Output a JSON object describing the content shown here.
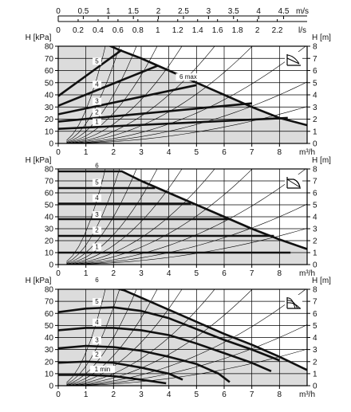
{
  "chart_data": [
    {
      "type": "line",
      "name": "proportional",
      "ylabel_left": "H [kPa]",
      "ylabel_right": "H [m]",
      "xlabel": "m³/h",
      "xlim": [
        0,
        9
      ],
      "ylim": [
        0,
        80
      ],
      "yticks": [
        0,
        10,
        20,
        30,
        40,
        50,
        60,
        70,
        80
      ],
      "yticks_m": [
        0,
        1,
        2,
        3,
        4,
        5,
        6,
        7,
        8
      ],
      "xticks": [
        0,
        1,
        2,
        3,
        4,
        5,
        6,
        7,
        8
      ],
      "top_axis_ms": {
        "unit": "m/s",
        "ticks": [
          "0",
          "0.5",
          "1",
          "1.5",
          "2",
          "2.5",
          "3",
          "3.5",
          "4",
          "4.5"
        ],
        "values": [
          0,
          0.5,
          1,
          1.5,
          2,
          2.5,
          3,
          3.5,
          4,
          4.5
        ]
      },
      "top_axis_ls": {
        "unit": "l/s",
        "ticks": [
          "0",
          "0.2",
          "0.4",
          "0.6",
          "0.8",
          "1",
          "1.2",
          "1.4",
          "1.6",
          "1.8",
          "2",
          "2.2"
        ],
        "values": [
          0,
          0.2,
          0.4,
          0.6,
          0.8,
          1,
          1.2,
          1.4,
          1.6,
          1.8,
          2,
          2.2
        ]
      },
      "mode_icon": "proportional-pressure-icon",
      "series": [
        {
          "name": "6 max",
          "points": [
            [
              0,
              81
            ],
            [
              0.8,
              82
            ],
            [
              1.3,
              83
            ],
            [
              1.7,
              82
            ],
            [
              2.2,
              77
            ],
            [
              3,
              70
            ],
            [
              4,
              60
            ],
            [
              5,
              50
            ],
            [
              6,
              40
            ],
            [
              7,
              30
            ],
            [
              8,
              21
            ],
            [
              9,
              15
            ]
          ]
        },
        {
          "name": "5",
          "points": [
            [
              0,
              39
            ],
            [
              2.3,
              77
            ]
          ]
        },
        {
          "name": "4",
          "points": [
            [
              0,
              31
            ],
            [
              3.6,
              64
            ]
          ]
        },
        {
          "name": "3",
          "points": [
            [
              0,
              24
            ],
            [
              5,
              48
            ]
          ]
        },
        {
          "name": "2",
          "points": [
            [
              0,
              18
            ],
            [
              7,
              33
            ]
          ]
        },
        {
          "name": "1",
          "points": [
            [
              0,
              12
            ],
            [
              8.3,
              21
            ]
          ]
        }
      ],
      "curve_labels": [
        {
          "text": "6 max",
          "x": 4.7,
          "y": 53
        },
        {
          "text": "5",
          "x": 1.4,
          "y": 66
        },
        {
          "text": "4",
          "x": 1.4,
          "y": 47
        },
        {
          "text": "3",
          "x": 1.4,
          "y": 33
        },
        {
          "text": "2",
          "x": 1.4,
          "y": 24
        },
        {
          "text": "1",
          "x": 1.4,
          "y": 16
        }
      ]
    },
    {
      "type": "line",
      "name": "constant",
      "ylabel_left": "H [kPa]",
      "ylabel_right": "H [m]",
      "xlabel": "m³/h",
      "xlim": [
        0,
        9
      ],
      "ylim": [
        0,
        80
      ],
      "yticks": [
        0,
        10,
        20,
        30,
        40,
        50,
        60,
        70,
        80
      ],
      "yticks_m": [
        0,
        1,
        2,
        3,
        4,
        5,
        6,
        7,
        8
      ],
      "xticks": [
        0,
        1,
        2,
        3,
        4,
        5,
        6,
        7,
        8
      ],
      "mode_icon": "constant-pressure-icon",
      "series": [
        {
          "name": "6",
          "points": [
            [
              0,
              78
            ],
            [
              2.3,
              78
            ],
            [
              3,
              70
            ],
            [
              4,
              60
            ],
            [
              5,
              50
            ],
            [
              6,
              40
            ],
            [
              7,
              30
            ],
            [
              8,
              21
            ],
            [
              9,
              13
            ]
          ]
        },
        {
          "name": "5",
          "points": [
            [
              0,
              64
            ],
            [
              3.5,
              64
            ]
          ]
        },
        {
          "name": "4",
          "points": [
            [
              0,
              51
            ],
            [
              4.8,
              51
            ]
          ]
        },
        {
          "name": "3",
          "points": [
            [
              0,
              38
            ],
            [
              6.2,
              38
            ]
          ]
        },
        {
          "name": "2",
          "points": [
            [
              0,
              24
            ],
            [
              7.8,
              24
            ]
          ]
        },
        {
          "name": "1",
          "points": [
            [
              0,
              10
            ],
            [
              8.4,
              10
            ]
          ]
        }
      ],
      "curve_labels": [
        {
          "text": "6",
          "x": 1.4,
          "y": 81
        },
        {
          "text": "5",
          "x": 1.4,
          "y": 67
        },
        {
          "text": "4",
          "x": 1.4,
          "y": 54
        },
        {
          "text": "3",
          "x": 1.4,
          "y": 40
        },
        {
          "text": "2",
          "x": 1.4,
          "y": 27
        },
        {
          "text": "1",
          "x": 1.4,
          "y": 13
        }
      ]
    },
    {
      "type": "line",
      "name": "fixed-speed",
      "ylabel_left": "H [kPa]",
      "ylabel_right": "H [m]",
      "xlabel": "m³/h",
      "xlim": [
        0,
        9
      ],
      "ylim": [
        0,
        80
      ],
      "yticks": [
        0,
        10,
        20,
        30,
        40,
        50,
        60,
        70,
        80
      ],
      "yticks_m": [
        0,
        1,
        2,
        3,
        4,
        5,
        6,
        7,
        8
      ],
      "xticks": [
        0,
        1,
        2,
        3,
        4,
        5,
        6,
        7,
        8
      ],
      "mode_icon": "constant-speed-icon",
      "series": [
        {
          "name": "6",
          "points": [
            [
              0,
              81
            ],
            [
              0.8,
              82
            ],
            [
              1.4,
              83
            ],
            [
              1.9,
              82
            ],
            [
              2.4,
              79
            ],
            [
              3,
              73
            ],
            [
              4,
              63
            ],
            [
              5,
              53
            ],
            [
              6,
              43
            ],
            [
              7,
              34
            ],
            [
              8,
              24
            ],
            [
              9,
              13
            ]
          ]
        },
        {
          "name": "5",
          "points": [
            [
              0,
              61
            ],
            [
              1,
              64
            ],
            [
              2,
              65
            ],
            [
              3,
              62
            ],
            [
              4,
              56
            ],
            [
              5,
              47
            ],
            [
              6,
              38
            ],
            [
              7,
              30
            ],
            [
              8,
              21
            ]
          ]
        },
        {
          "name": "4",
          "points": [
            [
              0,
              46
            ],
            [
              1,
              48
            ],
            [
              2,
              48
            ],
            [
              3,
              46
            ],
            [
              4,
              42
            ],
            [
              5,
              35
            ],
            [
              6,
              27
            ],
            [
              7,
              19
            ],
            [
              7.7,
              12
            ]
          ]
        },
        {
          "name": "3",
          "points": [
            [
              0,
              31
            ],
            [
              1,
              33
            ],
            [
              2,
              32
            ],
            [
              3,
              29
            ],
            [
              4,
              24
            ],
            [
              5,
              18
            ],
            [
              5.8,
              10
            ],
            [
              6.2,
              3
            ]
          ]
        },
        {
          "name": "2",
          "points": [
            [
              0,
              19
            ],
            [
              1,
              20
            ],
            [
              2,
              19
            ],
            [
              3,
              15
            ],
            [
              4,
              10
            ],
            [
              4.5,
              5
            ]
          ]
        },
        {
          "name": "1 min",
          "points": [
            [
              0,
              9
            ],
            [
              1,
              9
            ],
            [
              2,
              8
            ],
            [
              3,
              5
            ],
            [
              3.9,
              2
            ]
          ]
        }
      ],
      "curve_labels": [
        {
          "text": "6",
          "x": 1.4,
          "y": 86
        },
        {
          "text": "5",
          "x": 1.4,
          "y": 68
        },
        {
          "text": "4",
          "x": 1.4,
          "y": 51
        },
        {
          "text": "3",
          "x": 1.4,
          "y": 36
        },
        {
          "text": "2",
          "x": 1.4,
          "y": 24
        },
        {
          "text": "1 min",
          "x": 1.6,
          "y": 12
        }
      ]
    }
  ]
}
